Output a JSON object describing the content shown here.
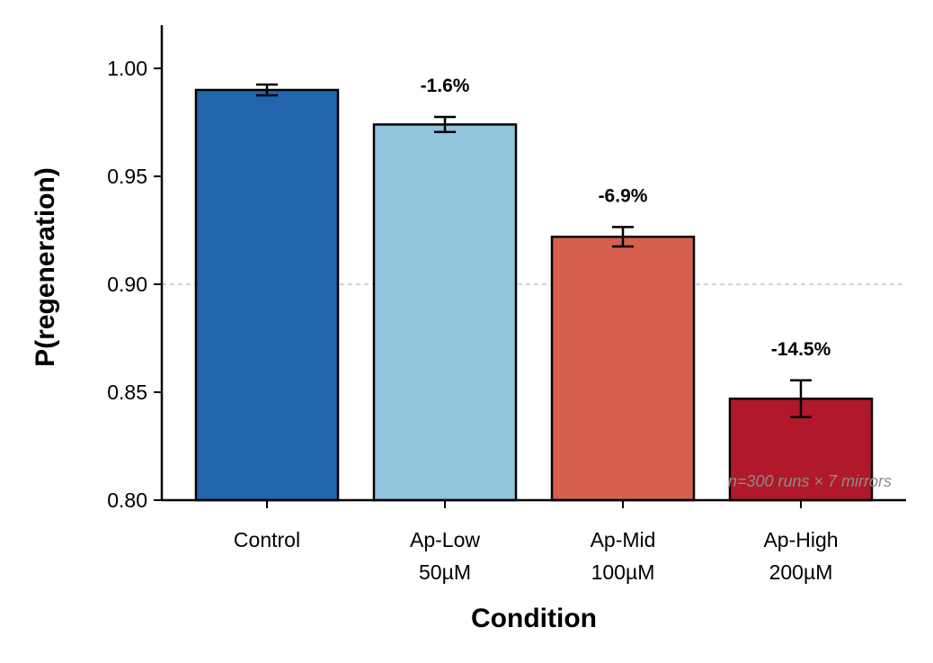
{
  "chart_data": {
    "type": "bar",
    "categories": [
      "Control",
      "Ap-Low\n50µM",
      "Ap-Mid\n100µM",
      "Ap-High\n200µM"
    ],
    "values": [
      0.99,
      0.974,
      0.922,
      0.847
    ],
    "errors": [
      0.0025,
      0.0035,
      0.0045,
      0.0085
    ],
    "colors": [
      "#2166ac",
      "#92c5de",
      "#d6604d",
      "#b2182b"
    ],
    "annotations": [
      "",
      "-1.6%",
      "-6.9%",
      "-14.5%"
    ],
    "xlabel": "Condition",
    "ylabel": "P(regeneration)",
    "ylim": [
      0.8,
      1.02
    ],
    "yticks": [
      0.8,
      0.85,
      0.9,
      0.95,
      1.0
    ],
    "ytick_labels": [
      "0.80",
      "0.85",
      "0.90",
      "0.95",
      "1.00"
    ],
    "reference_line": 0.9,
    "reference_line_color": "#bbbbbb",
    "footnote": "n=300 runs × 7 mirrors",
    "grid": false
  }
}
